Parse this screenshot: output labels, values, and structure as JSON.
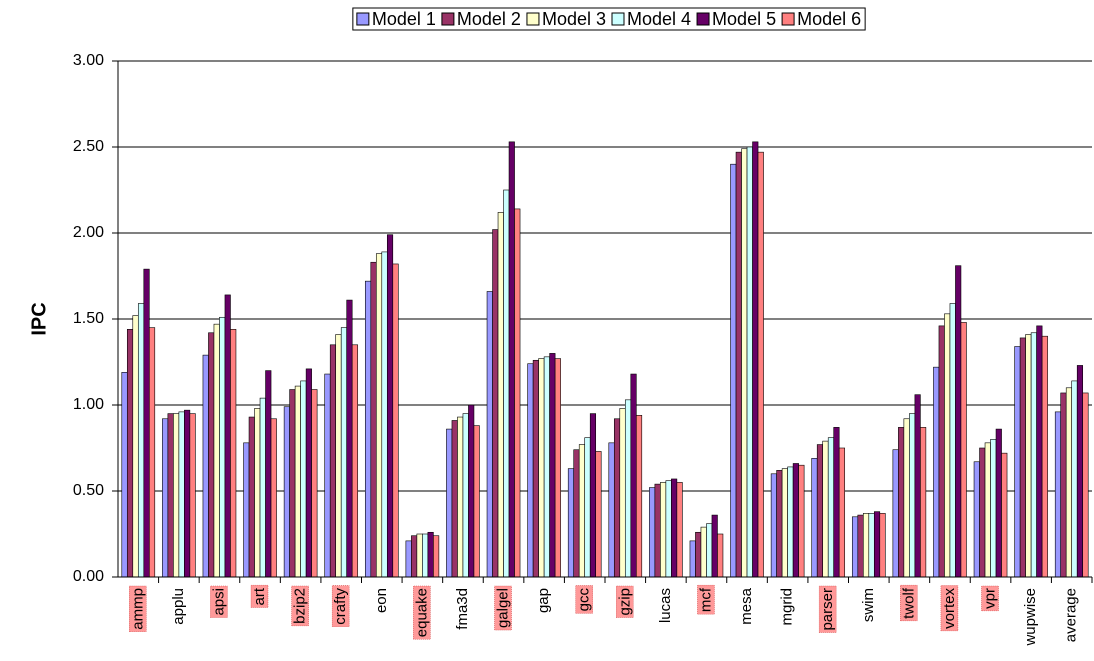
{
  "chart_data": {
    "type": "bar",
    "ylabel": "IPC",
    "categories": [
      "ammp",
      "applu",
      "apsi",
      "art",
      "bzip2",
      "crafty",
      "eon",
      "equake",
      "fma3d",
      "galgel",
      "gap",
      "gcc",
      "gzip",
      "lucas",
      "mcf",
      "mesa",
      "mgrid",
      "parser",
      "swim",
      "twolf",
      "vortex",
      "vpr",
      "wupwise",
      "average"
    ],
    "category_highlight": [
      true,
      false,
      true,
      true,
      true,
      true,
      false,
      true,
      false,
      true,
      false,
      true,
      true,
      false,
      true,
      false,
      false,
      true,
      false,
      true,
      true,
      true,
      false,
      false
    ],
    "highlight_color": "#ff9999",
    "series": [
      {
        "name": "Model 1",
        "color": "#9999ff",
        "values": [
          1.19,
          0.92,
          1.29,
          0.78,
          0.99,
          1.18,
          1.72,
          0.21,
          0.86,
          1.66,
          1.24,
          0.63,
          0.78,
          0.52,
          0.21,
          2.4,
          0.6,
          0.69,
          0.35,
          0.74,
          1.22,
          0.67,
          1.34,
          0.96
        ]
      },
      {
        "name": "Model 2",
        "color": "#993366",
        "values": [
          1.44,
          0.95,
          1.42,
          0.93,
          1.09,
          1.35,
          1.83,
          0.24,
          0.91,
          2.02,
          1.26,
          0.74,
          0.92,
          0.54,
          0.26,
          2.47,
          0.62,
          0.77,
          0.36,
          0.87,
          1.46,
          0.75,
          1.39,
          1.07
        ]
      },
      {
        "name": "Model 3",
        "color": "#ffffcc",
        "values": [
          1.52,
          0.95,
          1.47,
          0.98,
          1.11,
          1.41,
          1.88,
          0.25,
          0.93,
          2.12,
          1.27,
          0.77,
          0.98,
          0.55,
          0.29,
          2.49,
          0.63,
          0.79,
          0.37,
          0.92,
          1.53,
          0.78,
          1.41,
          1.1
        ]
      },
      {
        "name": "Model 4",
        "color": "#ccffff",
        "values": [
          1.59,
          0.96,
          1.51,
          1.04,
          1.14,
          1.45,
          1.89,
          0.25,
          0.95,
          2.25,
          1.28,
          0.81,
          1.03,
          0.56,
          0.31,
          2.5,
          0.64,
          0.81,
          0.37,
          0.95,
          1.59,
          0.8,
          1.42,
          1.14
        ]
      },
      {
        "name": "Model 5",
        "color": "#660066",
        "values": [
          1.79,
          0.97,
          1.64,
          1.2,
          1.21,
          1.61,
          1.99,
          0.26,
          1.0,
          2.53,
          1.3,
          0.95,
          1.18,
          0.57,
          0.36,
          2.53,
          0.66,
          0.87,
          0.38,
          1.06,
          1.81,
          0.86,
          1.46,
          1.23
        ]
      },
      {
        "name": "Model 6",
        "color": "#ff8080",
        "values": [
          1.45,
          0.95,
          1.44,
          0.92,
          1.09,
          1.35,
          1.82,
          0.24,
          0.88,
          2.14,
          1.27,
          0.73,
          0.94,
          0.55,
          0.25,
          2.47,
          0.65,
          0.75,
          0.37,
          0.87,
          1.48,
          0.72,
          1.4,
          1.07
        ]
      }
    ],
    "ylim": [
      0,
      3
    ],
    "yticks": [
      {
        "value": 0,
        "label": "0.00"
      },
      {
        "value": 0.5,
        "label": "0.50"
      },
      {
        "value": 1,
        "label": "1.00"
      },
      {
        "value": 1.5,
        "label": "1.50"
      },
      {
        "value": 2,
        "label": "2.00"
      },
      {
        "value": 2.5,
        "label": "2.50"
      },
      {
        "value": 3,
        "label": "3.00"
      }
    ],
    "grid": true,
    "legend": "top"
  }
}
